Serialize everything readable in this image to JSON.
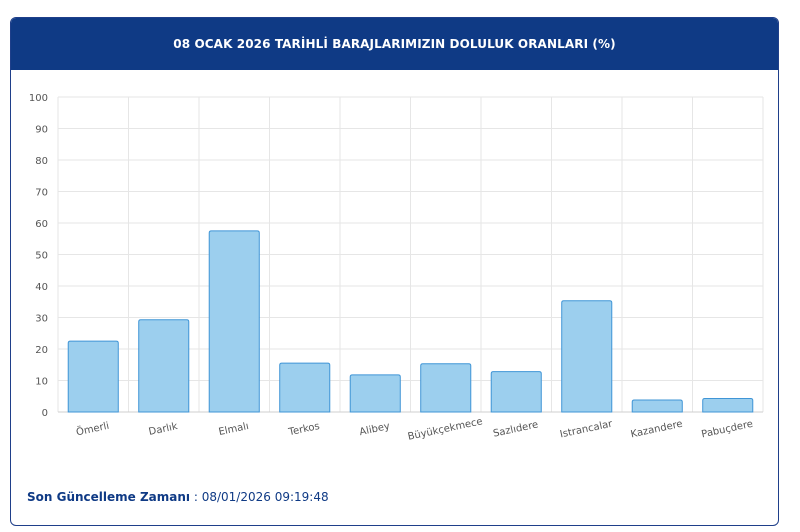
{
  "header": {
    "title": "08 OCAK 2026 TARİHLİ BARAJLARIMIZIN DOLULUK ORANLARI (%)"
  },
  "footer": {
    "label": "Son Güncelleme Zamanı",
    "separator": " : ",
    "value": "08/01/2026 09:19:48"
  },
  "colors": {
    "header_bg": "#0f3a85",
    "bar_fill": "#9ccfee",
    "bar_stroke": "#3f95d6",
    "grid": "#e6e6e6",
    "footer_text": "#0f3a85"
  },
  "chart_data": {
    "type": "bar",
    "categories": [
      "Ömerli",
      "Darlık",
      "Elmalı",
      "Terkos",
      "Alibey",
      "Büyükçekmece",
      "Sazlıdere",
      "Istrancalar",
      "Kazandere",
      "Pabuçdere"
    ],
    "values": [
      22.5,
      29.3,
      57.5,
      15.5,
      11.8,
      15.3,
      12.8,
      35.3,
      3.8,
      4.3
    ],
    "ylim": [
      0,
      100
    ],
    "yticks": [
      "0",
      "10",
      "20",
      "30",
      "40",
      "50",
      "60",
      "70",
      "80",
      "90",
      "100"
    ],
    "grid": true,
    "legend": false
  }
}
